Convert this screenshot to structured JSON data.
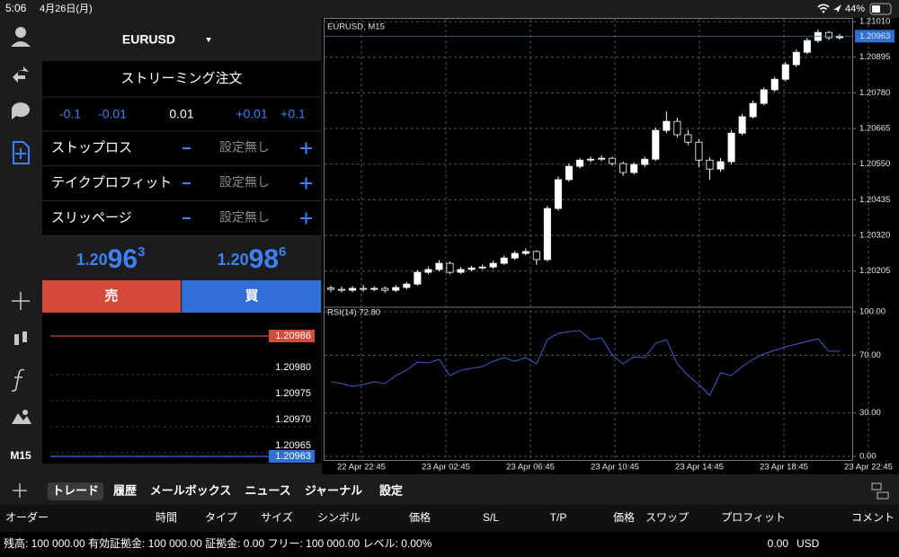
{
  "status_bar": {
    "time": "5:06",
    "date": "4月26日(月)",
    "battery": "44%"
  },
  "sidebar": {
    "timeframe": "M15"
  },
  "order_panel": {
    "symbol": "EURUSD",
    "title": "ストリーミング注文",
    "steps": [
      "-0.1",
      "-0.01",
      "0.01",
      "+0.01",
      "+0.1"
    ],
    "rows": [
      {
        "label": "ストップロス",
        "value": "設定無し"
      },
      {
        "label": "テイクプロフィット",
        "value": "設定無し"
      },
      {
        "label": "スリッページ",
        "value": "設定無し"
      }
    ],
    "bid": {
      "prefix": "1.20",
      "pips": "96",
      "point": "3"
    },
    "ask": {
      "prefix": "1.20",
      "pips": "98",
      "point": "6"
    },
    "sell": "売",
    "buy": "買"
  },
  "depth": {
    "levels": [
      "1.20986",
      "1.20980",
      "1.20975",
      "1.20970",
      "1.20965",
      "1.20963"
    ]
  },
  "chart_data": [
    {
      "type": "candlestick",
      "title": "EURUSD, M15",
      "xticks": [
        "22 Apr 22:45",
        "23 Apr 02:45",
        "23 Apr 06:45",
        "23 Apr 10:45",
        "23 Apr 14:45",
        "23 Apr 18:45",
        "23 Apr 22:45"
      ],
      "open": [
        1.2015,
        1.20146,
        1.20143,
        1.20149,
        1.20146,
        1.20149,
        1.20143,
        1.20152,
        1.20163,
        1.20201,
        1.2021,
        1.2023,
        1.20201,
        1.2021,
        1.20215,
        1.20218,
        1.2023,
        1.20247,
        1.20262,
        1.20268,
        1.20242,
        1.20407,
        1.205,
        1.20543,
        1.20563,
        1.20566,
        1.20569,
        1.20552,
        1.20523,
        1.20549,
        1.20566,
        1.20659,
        1.20688,
        1.20645,
        1.20621,
        1.20563,
        1.20534,
        1.20558,
        1.2065,
        1.20703,
        1.20746,
        1.2079,
        1.20824,
        1.20871,
        1.20911,
        1.20949,
        1.20975,
        1.20958
      ],
      "high": [
        1.20158,
        1.20155,
        1.20157,
        1.2016,
        1.20156,
        1.20155,
        1.2016,
        1.2017,
        1.20208,
        1.2022,
        1.2024,
        1.20236,
        1.20218,
        1.20222,
        1.20226,
        1.20238,
        1.20255,
        1.2027,
        1.20278,
        1.20272,
        1.20415,
        1.2051,
        1.20552,
        1.2057,
        1.20575,
        1.20578,
        1.20574,
        1.20558,
        1.20556,
        1.20574,
        1.20668,
        1.2072,
        1.207,
        1.2066,
        1.2063,
        1.20572,
        1.2057,
        1.2066,
        1.20712,
        1.20755,
        1.20798,
        1.20832,
        1.2088,
        1.2092,
        1.20958,
        1.20985,
        1.2098,
        1.2097
      ],
      "low": [
        1.20138,
        1.20136,
        1.20137,
        1.20139,
        1.2014,
        1.20135,
        1.20137,
        1.20146,
        1.20158,
        1.20195,
        1.20204,
        1.20195,
        1.20196,
        1.20205,
        1.20209,
        1.20212,
        1.20225,
        1.20241,
        1.20256,
        1.20225,
        1.20236,
        1.204,
        1.20493,
        1.20536,
        1.20556,
        1.20559,
        1.20545,
        1.20512,
        1.20517,
        1.20541,
        1.2056,
        1.2065,
        1.20636,
        1.20612,
        1.2054,
        1.205,
        1.20525,
        1.2055,
        1.20643,
        1.20697,
        1.2074,
        1.20784,
        1.20817,
        1.20864,
        1.20905,
        1.20942,
        1.2095,
        1.20952
      ],
      "close": [
        1.20146,
        1.20143,
        1.20149,
        1.20146,
        1.20149,
        1.20143,
        1.20152,
        1.20163,
        1.20201,
        1.2021,
        1.2023,
        1.20201,
        1.2021,
        1.20215,
        1.20218,
        1.2023,
        1.20247,
        1.20262,
        1.20268,
        1.20242,
        1.20407,
        1.205,
        1.20543,
        1.20563,
        1.20566,
        1.20569,
        1.20552,
        1.20523,
        1.20549,
        1.20566,
        1.20659,
        1.20688,
        1.20645,
        1.20621,
        1.20563,
        1.20534,
        1.20558,
        1.2065,
        1.20703,
        1.20746,
        1.2079,
        1.20824,
        1.20871,
        1.20911,
        1.20949,
        1.20975,
        1.20958,
        1.20963
      ],
      "color": "#ffffff",
      "ylim": [
        1.20094,
        1.21016
      ],
      "yticks": [
        {
          "value": 1.2101,
          "label": "1.21010"
        },
        {
          "value": 1.20895,
          "label": "1.20895"
        },
        {
          "value": 1.2078,
          "label": "1.20780"
        },
        {
          "value": 1.20665,
          "label": "1.20665"
        },
        {
          "value": 1.2055,
          "label": "1.20550"
        },
        {
          "value": 1.20435,
          "label": "1.20435"
        },
        {
          "value": 1.2032,
          "label": "1.20320"
        },
        {
          "value": 1.20205,
          "label": "1.20205"
        }
      ],
      "current_price": 1.20963,
      "current_color": "#2f6fd6",
      "grid": true
    },
    {
      "type": "line",
      "title": "RSI(14) 72.80",
      "values": [
        51.6,
        50.3,
        48.4,
        49.7,
        51.6,
        50.3,
        55.9,
        59.6,
        65.2,
        64.6,
        67.1,
        55.9,
        59.6,
        60.9,
        62.1,
        65.8,
        68.3,
        65.8,
        68.3,
        64.0,
        80.7,
        85.1,
        86.3,
        87.0,
        80.7,
        82.0,
        70.2,
        64.0,
        68.9,
        68.3,
        78.3,
        80.7,
        64.0,
        55.9,
        49.7,
        42.2,
        57.8,
        55.9,
        62.1,
        67.1,
        70.8,
        73.3,
        75.8,
        77.6,
        79.5,
        81.4,
        72.7,
        72.8
      ],
      "color": "#3a5fcd",
      "ylim": [
        -2.5,
        101.9
      ],
      "yticks": [
        {
          "value": 100,
          "label": "100.00"
        },
        {
          "value": 70,
          "label": "70.00"
        },
        {
          "value": 30,
          "label": "30.00"
        },
        {
          "value": 0,
          "label": "0.00"
        }
      ],
      "grid": true
    }
  ],
  "toolbar": {
    "tabs": [
      "トレード",
      "履歴",
      "メールボックス",
      "ニュース",
      "ジャーナル",
      "設定"
    ]
  },
  "columns": [
    "オーダー",
    "時間",
    "タイプ",
    "サイズ",
    "シンボル",
    "価格",
    "S/L",
    "T/P",
    "価格",
    "スワップ",
    "プロフィット",
    "コメント"
  ],
  "footer": {
    "account": "残高: 100 000.00 有効証拠金: 100 000.00 証拠金: 0.00 フリー: 100 000.00 レベル: 0.00%",
    "profit": "0.00",
    "currency": "USD"
  }
}
